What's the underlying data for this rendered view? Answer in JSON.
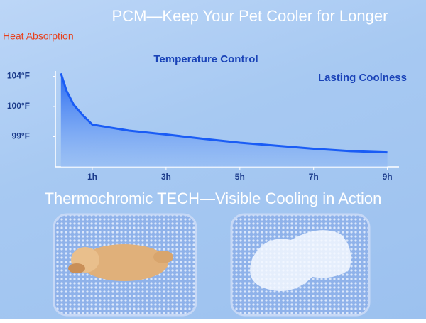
{
  "chart_data": {
    "type": "area",
    "title": "PCM—Keep Your Pet Cooler for Longer",
    "subtitle": "Thermochromic TECH—Visible Cooling in Action",
    "annotations": [
      "Heat Absorption",
      "Temperature Control",
      "Lasting Coolness"
    ],
    "x": [
      0.15,
      0.3,
      0.5,
      0.75,
      1,
      1.5,
      2,
      3,
      4,
      5,
      6,
      7,
      8,
      9
    ],
    "series": [
      {
        "name": "Temperature",
        "color": "#1a5cf5",
        "values": [
          104.1,
          102.1,
          100.2,
          99.7,
          99.4,
          99.3,
          99.2,
          99.07,
          98.93,
          98.8,
          98.7,
          98.6,
          98.52,
          98.48
        ]
      }
    ],
    "xlim": [
      0,
      9.2
    ],
    "xticks": [
      {
        "value": 1,
        "label": "1h"
      },
      {
        "value": 3,
        "label": "3h"
      },
      {
        "value": 5,
        "label": "5h"
      },
      {
        "value": 7,
        "label": "7h"
      },
      {
        "value": 9,
        "label": "9h"
      }
    ],
    "ylim": [
      98,
      105
    ],
    "yticks": [
      {
        "value": 99,
        "label": "99°F"
      },
      {
        "value": 100,
        "label": "100°F"
      },
      {
        "value": 104,
        "label": "104°F"
      }
    ]
  }
}
